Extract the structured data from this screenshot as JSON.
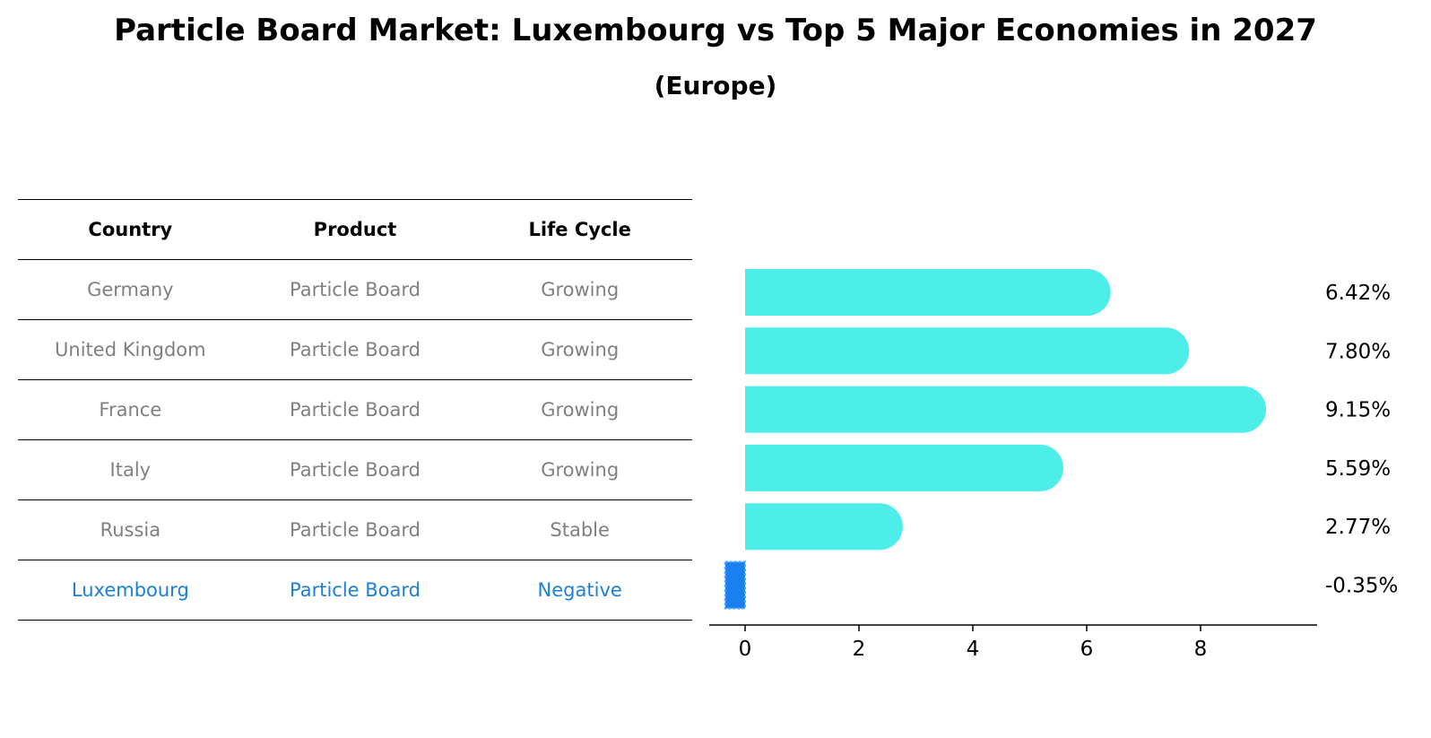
{
  "title": "Particle Board Market: Luxembourg vs Top 5 Major Economies in 2027",
  "subtitle": "(Europe)",
  "table": {
    "headers": [
      "Country",
      "Product",
      "Life Cycle"
    ],
    "rows": [
      [
        "Germany",
        "Particle Board",
        "Growing"
      ],
      [
        "United Kingdom",
        "Particle Board",
        "Growing"
      ],
      [
        "France",
        "Particle Board",
        "Growing"
      ],
      [
        "Italy",
        "Particle Board",
        "Growing"
      ],
      [
        "Russia",
        "Particle Board",
        "Stable"
      ],
      [
        "Luxembourg",
        "Particle Board",
        "Negative"
      ]
    ]
  },
  "chart_data": {
    "type": "bar",
    "orientation": "horizontal",
    "categories": [
      "Germany",
      "United Kingdom",
      "France",
      "Italy",
      "Russia",
      "Luxembourg"
    ],
    "values": [
      6.42,
      7.8,
      9.15,
      5.59,
      2.77,
      -0.35
    ],
    "value_labels": [
      "6.42%",
      "7.80%",
      "9.15%",
      "5.59%",
      "2.77%",
      "-0.35%"
    ],
    "xticks": [
      0,
      2,
      4,
      6,
      8
    ],
    "xlim": [
      -0.8,
      9.6
    ],
    "colors": {
      "default": "#4deeea",
      "highlight": "#1a80f0"
    },
    "highlight_index": 5
  }
}
